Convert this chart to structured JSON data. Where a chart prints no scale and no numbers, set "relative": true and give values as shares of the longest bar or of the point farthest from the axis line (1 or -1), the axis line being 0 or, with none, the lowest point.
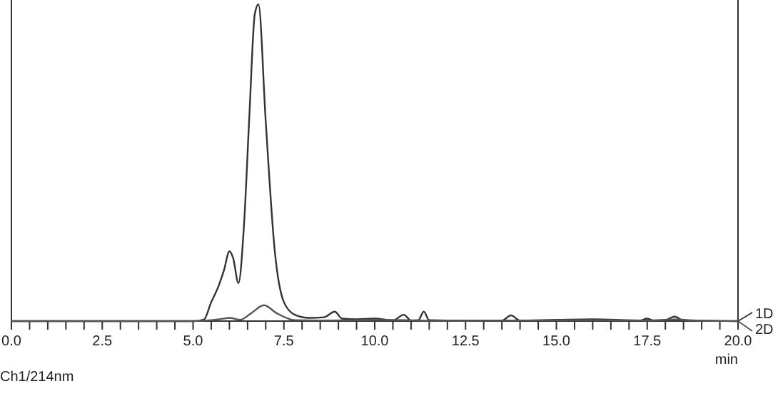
{
  "chart_data": {
    "type": "line",
    "relative": true,
    "xlabel": "min",
    "annotations": [
      "Ch1/214nm"
    ],
    "xlim": [
      0,
      20
    ],
    "xticks": [
      {
        "value": 0,
        "label": "0.0"
      },
      {
        "value": 0.5,
        "label": null
      },
      {
        "value": 1,
        "label": null
      },
      {
        "value": 1.5,
        "label": null
      },
      {
        "value": 2,
        "label": null
      },
      {
        "value": 2.5,
        "label": "2.5"
      },
      {
        "value": 3,
        "label": null
      },
      {
        "value": 3.5,
        "label": null
      },
      {
        "value": 4,
        "label": null
      },
      {
        "value": 4.5,
        "label": null
      },
      {
        "value": 5,
        "label": "5.0"
      },
      {
        "value": 5.5,
        "label": null
      },
      {
        "value": 6,
        "label": null
      },
      {
        "value": 6.5,
        "label": null
      },
      {
        "value": 7,
        "label": null
      },
      {
        "value": 7.5,
        "label": "7.5"
      },
      {
        "value": 8,
        "label": null
      },
      {
        "value": 8.5,
        "label": null
      },
      {
        "value": 9,
        "label": null
      },
      {
        "value": 9.5,
        "label": null
      },
      {
        "value": 10,
        "label": "10.0"
      },
      {
        "value": 10.5,
        "label": null
      },
      {
        "value": 11,
        "label": null
      },
      {
        "value": 11.5,
        "label": null
      },
      {
        "value": 12,
        "label": null
      },
      {
        "value": 12.5,
        "label": "12.5"
      },
      {
        "value": 13,
        "label": null
      },
      {
        "value": 13.5,
        "label": null
      },
      {
        "value": 14,
        "label": null
      },
      {
        "value": 14.5,
        "label": null
      },
      {
        "value": 15,
        "label": "15.0"
      },
      {
        "value": 15.5,
        "label": null
      },
      {
        "value": 16,
        "label": null
      },
      {
        "value": 16.5,
        "label": null
      },
      {
        "value": 17,
        "label": null
      },
      {
        "value": 17.5,
        "label": "17.5"
      },
      {
        "value": 18,
        "label": null
      },
      {
        "value": 18.5,
        "label": null
      },
      {
        "value": 19,
        "label": null
      },
      {
        "value": 19.5,
        "label": null
      },
      {
        "value": 20,
        "label": "20.0"
      }
    ],
    "grid": false,
    "legend": "right",
    "marker": "none",
    "line_style": "solid",
    "series": [
      {
        "name": "1D",
        "color": "#333333",
        "x": [
          0,
          5,
          5.3,
          5.5,
          5.7,
          5.85,
          6.0,
          6.1,
          6.25,
          6.4,
          6.55,
          6.7,
          6.8,
          7.0,
          7.25,
          7.5,
          7.8,
          8.2,
          8.6,
          8.9,
          9.1,
          9.5,
          10.0,
          10.5,
          10.8,
          11.0,
          11.2,
          11.35,
          11.5,
          12.0,
          13.5,
          13.75,
          14.0,
          15.0,
          16.0,
          17.3,
          17.5,
          17.7,
          18.0,
          18.25,
          18.5,
          19.0,
          20
        ],
        "values": [
          0,
          0,
          0.005,
          0.06,
          0.11,
          0.16,
          0.22,
          0.2,
          0.12,
          0.3,
          0.65,
          0.97,
          1,
          0.63,
          0.22,
          0.06,
          0.02,
          0.01,
          0.012,
          0.03,
          0.008,
          0.006,
          0.008,
          0.002,
          0.02,
          0.002,
          0.003,
          0.03,
          0.003,
          0.002,
          0.002,
          0.018,
          0.002,
          0.004,
          0.006,
          0.002,
          0.008,
          0.001,
          0.003,
          0.014,
          0.002,
          0.001,
          0
        ]
      },
      {
        "name": "2D",
        "color": "#555555",
        "x": [
          0,
          5,
          5.5,
          5.8,
          6.0,
          6.3,
          6.6,
          6.95,
          7.3,
          7.8,
          8.5,
          9.5,
          10,
          12,
          15.5,
          16,
          17.5,
          18.25,
          19,
          20
        ],
        "values": [
          0,
          0,
          0.003,
          0.007,
          0.01,
          0.004,
          0.025,
          0.05,
          0.025,
          0.003,
          0.002,
          0.003,
          0.004,
          0.001,
          0.003,
          0.003,
          0.002,
          0.005,
          0.001,
          0
        ]
      }
    ]
  }
}
